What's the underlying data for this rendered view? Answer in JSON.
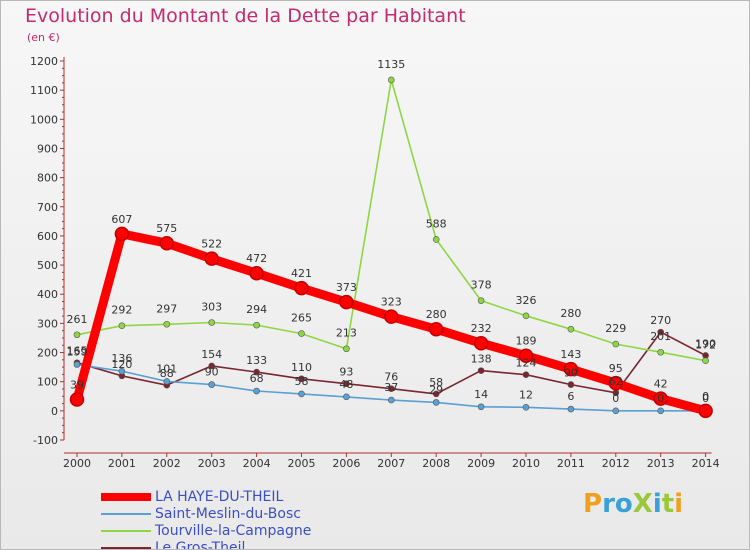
{
  "title": "Evolution du Montant de la Dette par Habitant",
  "subtitle": "(en €)",
  "logo_text": "ProXiti",
  "chart_data": {
    "type": "line",
    "x": [
      "2000",
      "2001",
      "2002",
      "2003",
      "2004",
      "2005",
      "2006",
      "2007",
      "2008",
      "2009",
      "2010",
      "2011",
      "2012",
      "2013",
      "2014"
    ],
    "ylim": [
      -100,
      1200
    ],
    "yticks": [
      "-100",
      "0",
      "100",
      "200",
      "300",
      "400",
      "500",
      "600",
      "700",
      "800",
      "900",
      "1000",
      "1100",
      "1200"
    ],
    "grid": false,
    "legend_position": "bottom-left",
    "series": [
      {
        "name": "LA HAYE-DU-THEIL",
        "color": "#ff0000",
        "values": [
          39,
          607,
          575,
          522,
          472,
          421,
          373,
          323,
          280,
          232,
          189,
          143,
          95,
          42,
          0
        ],
        "labels": [
          "39",
          "607",
          "575",
          "522",
          "472",
          "421",
          "373",
          "323",
          "280",
          "232",
          "189",
          "143",
          "95",
          "42",
          "0"
        ]
      },
      {
        "name": "Saint-Meslin-du-Bosc",
        "color": "#5aa0d2",
        "values": [
          159,
          136,
          101,
          90,
          68,
          58,
          48,
          37,
          29,
          14,
          12,
          6,
          0,
          0,
          0
        ],
        "labels": [
          "159",
          "136",
          "101",
          "90",
          "68",
          "58",
          "48",
          "37",
          "29",
          "14",
          "12",
          "6",
          "0",
          "0",
          "0"
        ]
      },
      {
        "name": "Tourville-la-Campagne",
        "color": "#8ed644",
        "values": [
          261,
          292,
          297,
          303,
          294,
          265,
          213,
          1135,
          588,
          378,
          326,
          280,
          229,
          201,
          172
        ],
        "labels": [
          "261",
          "292",
          "297",
          "303",
          "294",
          "265",
          "213",
          "1135",
          "588",
          "378",
          "326",
          "280",
          "229",
          "201",
          "172"
        ]
      },
      {
        "name": "Le Gros-Theil",
        "color": "#7a2630",
        "values": [
          165,
          120,
          88,
          154,
          133,
          110,
          93,
          76,
          58,
          138,
          124,
          90,
          62,
          270,
          190
        ],
        "labels": [
          "165",
          "120",
          "88",
          "154",
          "133",
          "110",
          "93",
          "76",
          "58",
          "138",
          "124",
          "90",
          "62",
          "270",
          "190"
        ]
      }
    ]
  }
}
